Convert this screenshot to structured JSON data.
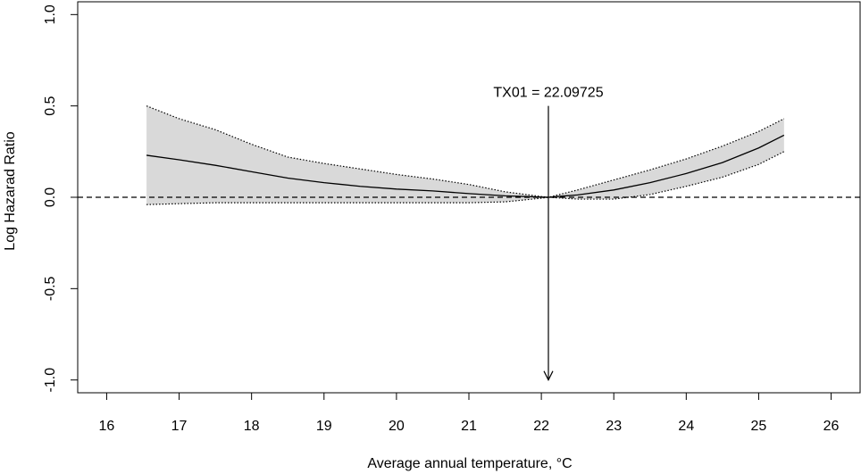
{
  "chart_data": {
    "type": "line",
    "xlabel": "Average annual temperature, °C",
    "ylabel": "Log Hazarad Ratio",
    "xlim": [
      15.6,
      26.4
    ],
    "ylim": [
      -1.07,
      1.07
    ],
    "x_ticks": [
      16,
      17,
      18,
      19,
      20,
      21,
      22,
      23,
      24,
      25,
      26
    ],
    "y_ticks": [
      -1.0,
      -0.5,
      0.0,
      0.5,
      1.0
    ],
    "x_tick_labels": [
      "16",
      "17",
      "18",
      "19",
      "20",
      "21",
      "22",
      "23",
      "24",
      "25",
      "26"
    ],
    "y_tick_labels": [
      "-1.0",
      "-0.5",
      "0.0",
      "0.5",
      "1.0"
    ],
    "grid": false,
    "reference_line": {
      "y": 0,
      "style": "dashed"
    },
    "annotation": {
      "text": "TX01 = 22.09725",
      "x": 22.09725,
      "arrow_from_y": 0.5,
      "arrow_to_y": -1.0
    },
    "series": [
      {
        "role": "estimate",
        "x": [
          16.55,
          17,
          17.5,
          18,
          18.5,
          19,
          19.5,
          20,
          20.5,
          21,
          21.5,
          22,
          22.097,
          22.5,
          23,
          23.5,
          24,
          24.5,
          25,
          25.35
        ],
        "y": [
          0.23,
          0.205,
          0.175,
          0.14,
          0.105,
          0.08,
          0.06,
          0.045,
          0.035,
          0.02,
          0.008,
          0.001,
          0.0,
          0.013,
          0.04,
          0.08,
          0.13,
          0.19,
          0.27,
          0.34
        ]
      },
      {
        "role": "upper",
        "x": [
          16.55,
          17,
          17.5,
          18,
          18.5,
          19,
          19.5,
          20,
          20.5,
          21,
          21.5,
          22,
          22.097,
          22.5,
          23,
          23.5,
          24,
          24.5,
          25,
          25.35
        ],
        "y": [
          0.5,
          0.43,
          0.37,
          0.29,
          0.22,
          0.185,
          0.155,
          0.125,
          0.1,
          0.07,
          0.03,
          0.004,
          0.0,
          0.04,
          0.095,
          0.15,
          0.21,
          0.28,
          0.36,
          0.43
        ]
      },
      {
        "role": "lower",
        "x": [
          16.55,
          17,
          17.5,
          18,
          18.5,
          19,
          19.5,
          20,
          20.5,
          21,
          21.5,
          22,
          22.097,
          22.5,
          23,
          23.5,
          24,
          24.5,
          25,
          25.35
        ],
        "y": [
          -0.04,
          -0.035,
          -0.03,
          -0.03,
          -0.03,
          -0.03,
          -0.03,
          -0.03,
          -0.03,
          -0.03,
          -0.025,
          -0.005,
          0.0,
          -0.01,
          -0.01,
          0.015,
          0.06,
          0.11,
          0.18,
          0.25
        ]
      }
    ],
    "colors": {
      "band_fill": "#d9d9d9",
      "band_edge": "#000000",
      "line": "#000000"
    }
  }
}
